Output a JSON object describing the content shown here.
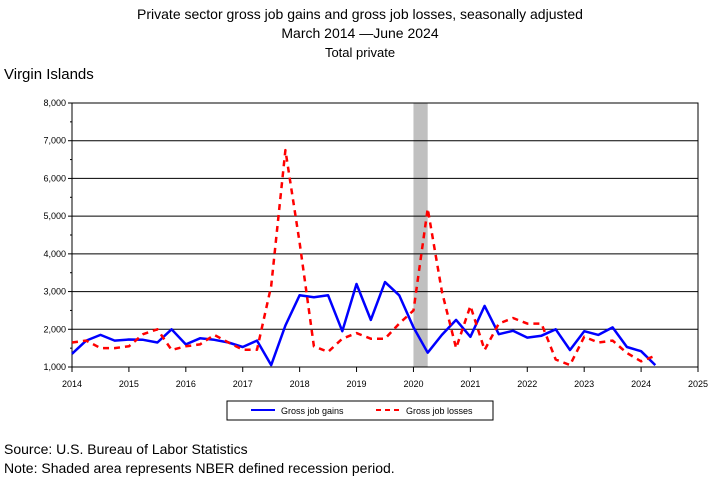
{
  "chart_data": {
    "type": "line",
    "title": "Private sector gross job gains and gross job losses, seasonally adjusted",
    "subtitle": "March 2014 —June 2024",
    "subtitle2": "Total private",
    "region_label": "Virgin Islands",
    "ylim": [
      1000,
      8000
    ],
    "yticks": [
      1000,
      2000,
      3000,
      4000,
      5000,
      6000,
      7000,
      8000
    ],
    "ytick_labels": [
      "1,000",
      "2,000",
      "3,000",
      "4,000",
      "5,000",
      "6,000",
      "7,000",
      "8,000"
    ],
    "xlim": [
      2014,
      2025
    ],
    "xticks": [
      "2014",
      "2015",
      "2016",
      "2017",
      "2018",
      "2019",
      "2020",
      "2021",
      "2022",
      "2023",
      "2024",
      "2025"
    ],
    "recession": [
      2020.0,
      2020.25
    ],
    "grid": true,
    "legend_position": "bottom-center",
    "colors": {
      "gains": "#0000ff",
      "losses": "#ff0000",
      "recession": "#c0c0c0"
    },
    "x": [
      2014.0,
      2014.25,
      2014.5,
      2014.75,
      2015.0,
      2015.25,
      2015.5,
      2015.75,
      2016.0,
      2016.25,
      2016.5,
      2016.75,
      2017.0,
      2017.25,
      2017.5,
      2017.75,
      2018.0,
      2018.25,
      2018.5,
      2018.75,
      2019.0,
      2019.25,
      2019.5,
      2019.75,
      2020.0,
      2020.25,
      2020.5,
      2020.75,
      2021.0,
      2021.25,
      2021.5,
      2021.75,
      2022.0,
      2022.25,
      2022.5,
      2022.75,
      2023.0,
      2023.25,
      2023.5,
      2023.75,
      2024.0,
      2024.25
    ],
    "series": [
      {
        "name": "Gross job gains",
        "style": "solid",
        "values": [
          1350,
          1700,
          1850,
          1700,
          1730,
          1720,
          1650,
          2000,
          1600,
          1760,
          1720,
          1650,
          1530,
          1700,
          1050,
          2100,
          2900,
          2850,
          2900,
          1950,
          3200,
          2250,
          3250,
          2900,
          2050,
          1380,
          1850,
          2250,
          1800,
          2620,
          1870,
          1960,
          1780,
          1830,
          2000,
          1450,
          1950,
          1850,
          2050,
          1530,
          1420,
          1050
        ]
      },
      {
        "name": "Gross job losses",
        "style": "dashed",
        "values": [
          1650,
          1700,
          1500,
          1500,
          1550,
          1870,
          2000,
          1450,
          1550,
          1600,
          1850,
          1650,
          1460,
          1460,
          3150,
          6750,
          4300,
          1550,
          1400,
          1750,
          1900,
          1750,
          1750,
          2150,
          2500,
          5200,
          3000,
          1500,
          2620,
          1450,
          2150,
          2300,
          2150,
          2150,
          1200,
          1050,
          1800,
          1650,
          1700,
          1370,
          1150,
          1300
        ]
      }
    ]
  },
  "source": "Source: U.S. Bureau of Labor Statistics",
  "note": "Note: Shaded area represents NBER defined recession period."
}
